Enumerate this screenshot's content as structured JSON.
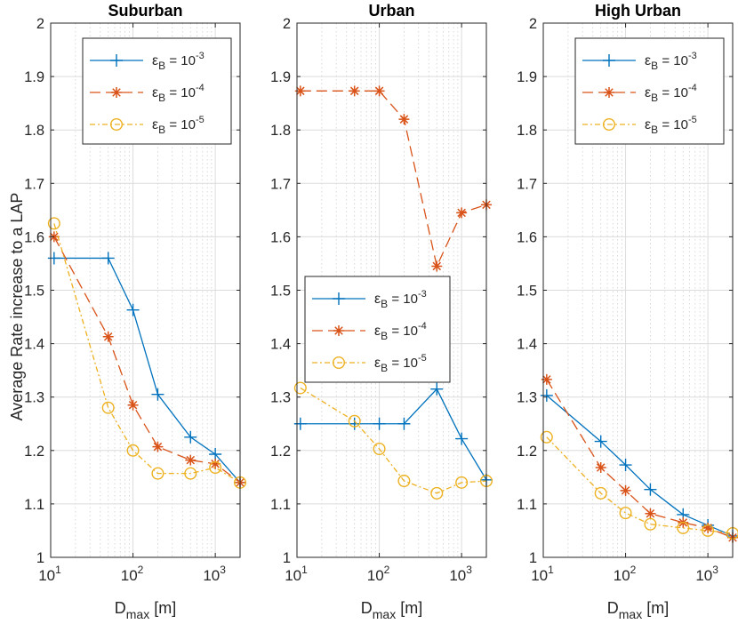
{
  "colors": {
    "blue": "#0072BD",
    "red": "#D95319",
    "yellow": "#EDB120",
    "grid": "#dcdcdc",
    "axis": "#262626"
  },
  "figure": {
    "ylabel": "Average Rate increase to a LAP",
    "xlabel_main": "D",
    "xlabel_sub": "max",
    "xlabel_unit": " [m]"
  },
  "legend_labels": [
    {
      "eps": "ε",
      "sub": "B",
      "eq": " = 10",
      "exp": "-3"
    },
    {
      "eps": "ε",
      "sub": "B",
      "eq": " = 10",
      "exp": "-4"
    },
    {
      "eps": "ε",
      "sub": "B",
      "eq": " = 10",
      "exp": "-5"
    }
  ],
  "chart_data": [
    {
      "type": "line",
      "title": "Suburban",
      "xscale": "log",
      "xlim": [
        10,
        2000
      ],
      "ylim": [
        1,
        2
      ],
      "yticks": [
        "1",
        "1.1",
        "1.2",
        "1.3",
        "1.4",
        "1.5",
        "1.6",
        "1.7",
        "1.8",
        "1.9",
        "2"
      ],
      "xticks": [
        {
          "base": "10",
          "exp": "1"
        },
        {
          "base": "10",
          "exp": "2"
        },
        {
          "base": "10",
          "exp": "3"
        }
      ],
      "legend_position": "top-right",
      "x": [
        11,
        50,
        100,
        200,
        500,
        1000,
        2000
      ],
      "series": [
        {
          "name": "eps_B = 10^-3",
          "values": [
            1.56,
            1.56,
            1.463,
            1.305,
            1.225,
            1.193,
            1.14
          ]
        },
        {
          "name": "eps_B = 10^-4",
          "values": [
            1.6,
            1.413,
            1.285,
            1.207,
            1.182,
            1.175,
            1.14
          ]
        },
        {
          "name": "eps_B = 10^-5",
          "values": [
            1.625,
            1.28,
            1.2,
            1.157,
            1.157,
            1.168,
            1.14
          ]
        }
      ]
    },
    {
      "type": "line",
      "title": "Urban",
      "xscale": "log",
      "xlim": [
        10,
        2000
      ],
      "ylim": [
        1,
        2
      ],
      "yticks": [
        "1",
        "1.1",
        "1.2",
        "1.3",
        "1.4",
        "1.5",
        "1.6",
        "1.7",
        "1.8",
        "1.9",
        "2"
      ],
      "xticks": [
        {
          "base": "10",
          "exp": "1"
        },
        {
          "base": "10",
          "exp": "2"
        },
        {
          "base": "10",
          "exp": "3"
        }
      ],
      "legend_position": "middle-right",
      "x": [
        11,
        50,
        100,
        200,
        500,
        1000,
        2000
      ],
      "series": [
        {
          "name": "eps_B = 10^-3",
          "values": [
            1.25,
            1.25,
            1.25,
            1.25,
            1.315,
            1.222,
            1.145
          ]
        },
        {
          "name": "eps_B = 10^-4",
          "values": [
            1.873,
            1.873,
            1.873,
            1.82,
            1.545,
            1.645,
            1.66
          ]
        },
        {
          "name": "eps_B = 10^-5",
          "values": [
            1.317,
            1.255,
            1.203,
            1.143,
            1.12,
            1.14,
            1.143
          ]
        }
      ]
    },
    {
      "type": "line",
      "title": "High Urban",
      "xscale": "log",
      "xlim": [
        10,
        2000
      ],
      "ylim": [
        1,
        2
      ],
      "yticks": [
        "1",
        "1.1",
        "1.2",
        "1.3",
        "1.4",
        "1.5",
        "1.6",
        "1.7",
        "1.8",
        "1.9",
        "2"
      ],
      "xticks": [
        {
          "base": "10",
          "exp": "1"
        },
        {
          "base": "10",
          "exp": "2"
        },
        {
          "base": "10",
          "exp": "3"
        }
      ],
      "legend_position": "top-right",
      "x": [
        11,
        50,
        100,
        200,
        500,
        1000,
        2000
      ],
      "series": [
        {
          "name": "eps_B = 10^-3",
          "values": [
            1.303,
            1.217,
            1.173,
            1.127,
            1.08,
            1.06,
            1.04
          ]
        },
        {
          "name": "eps_B = 10^-4",
          "values": [
            1.333,
            1.168,
            1.125,
            1.082,
            1.065,
            1.055,
            1.037
          ]
        },
        {
          "name": "eps_B = 10^-5",
          "values": [
            1.225,
            1.12,
            1.083,
            1.062,
            1.055,
            1.05,
            1.045
          ]
        }
      ]
    }
  ]
}
